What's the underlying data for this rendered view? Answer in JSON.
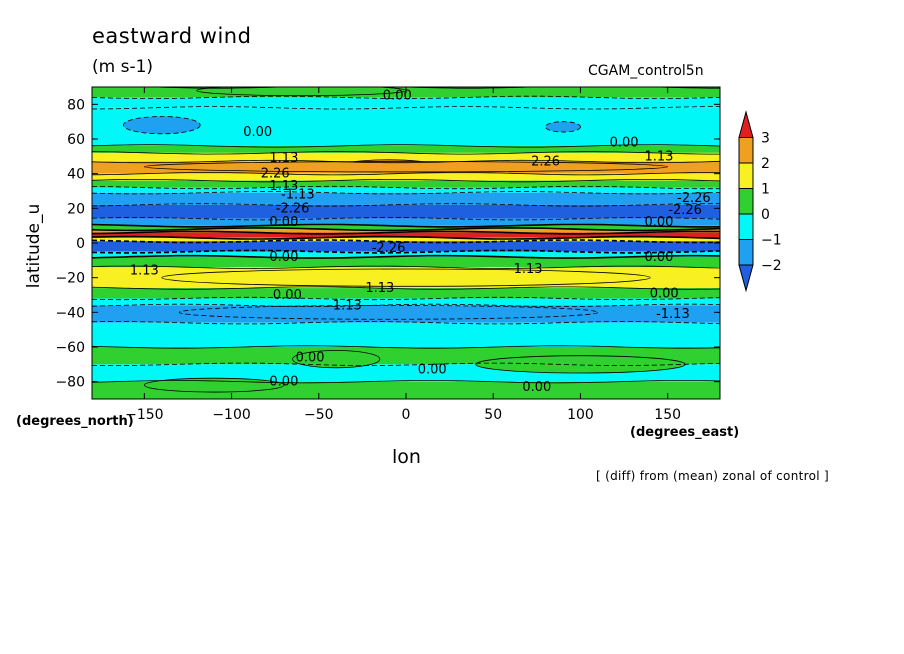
{
  "title": "eastward wind",
  "units": "(m s-1)",
  "run_label": "CGAM_control5n",
  "footnote": "[ (diff) from (mean) zonal of control ]",
  "chart_data": {
    "type": "heatmap",
    "title": "eastward wind",
    "xlabel": "lon",
    "ylabel": "latitude_u",
    "x_units": "(degrees_east)",
    "y_units": "(degrees_north)",
    "xlim": [
      -180,
      180
    ],
    "ylim": [
      -90,
      90
    ],
    "xticks": [
      -150,
      -100,
      -50,
      0,
      50,
      100,
      150
    ],
    "yticks": [
      80,
      60,
      40,
      20,
      0,
      -20,
      -40,
      -60,
      -80
    ],
    "colorbar": {
      "levels": [
        3,
        2,
        1,
        0,
        -1,
        -2
      ],
      "colors": [
        "#e02020",
        "#f0a020",
        "#f8f020",
        "#30d030",
        "#00f8f8",
        "#20a0f0",
        "#1e60e0"
      ]
    },
    "contour_labels": [
      "0.00",
      "1.13",
      "2.26",
      "-1.13",
      "-2.26"
    ],
    "bands": [
      {
        "lat_top": 90,
        "lat_bottom": 84,
        "value": 0.5
      },
      {
        "lat_top": 84,
        "lat_bottom": 78,
        "value": -0.3
      },
      {
        "lat_top": 78,
        "lat_bottom": 56,
        "value": -0.5
      },
      {
        "lat_top": 56,
        "lat_bottom": 52,
        "value": 0.4
      },
      {
        "lat_top": 52,
        "lat_bottom": 47,
        "value": 1.3
      },
      {
        "lat_top": 47,
        "lat_bottom": 40,
        "value": 2.2
      },
      {
        "lat_top": 40,
        "lat_bottom": 36,
        "value": 1.3
      },
      {
        "lat_top": 36,
        "lat_bottom": 32,
        "value": 0.3
      },
      {
        "lat_top": 32,
        "lat_bottom": 29,
        "value": -0.7
      },
      {
        "lat_top": 29,
        "lat_bottom": 22,
        "value": -1.6
      },
      {
        "lat_top": 22,
        "lat_bottom": 14,
        "value": -2.4
      },
      {
        "lat_top": 14,
        "lat_bottom": 10,
        "value": -1.2
      },
      {
        "lat_top": 10,
        "lat_bottom": 8,
        "value": 0.6
      },
      {
        "lat_top": 8,
        "lat_bottom": 6,
        "value": 2.5
      },
      {
        "lat_top": 6,
        "lat_bottom": 3,
        "value": 3.5
      },
      {
        "lat_top": 3,
        "lat_bottom": 1,
        "value": 1.5
      },
      {
        "lat_top": 1,
        "lat_bottom": -5,
        "value": -2.4
      },
      {
        "lat_top": -5,
        "lat_bottom": -8,
        "value": -0.6
      },
      {
        "lat_top": -8,
        "lat_bottom": -14,
        "value": 0.5
      },
      {
        "lat_top": -14,
        "lat_bottom": -26,
        "value": 1.4
      },
      {
        "lat_top": -26,
        "lat_bottom": -32,
        "value": 0.4
      },
      {
        "lat_top": -32,
        "lat_bottom": -36,
        "value": -0.4
      },
      {
        "lat_top": -36,
        "lat_bottom": -46,
        "value": -1.2
      },
      {
        "lat_top": -46,
        "lat_bottom": -60,
        "value": -0.5
      },
      {
        "lat_top": -60,
        "lat_bottom": -70,
        "value": 0.3
      },
      {
        "lat_top": -70,
        "lat_bottom": -80,
        "value": -0.2
      },
      {
        "lat_top": -80,
        "lat_bottom": -90,
        "value": 0.4
      }
    ],
    "blobs": [
      {
        "lon": -140,
        "lat": 68,
        "rx": 22,
        "ry": 5,
        "value": -1.3
      },
      {
        "lon": 90,
        "lat": 67,
        "rx": 10,
        "ry": 3,
        "value": -1.3
      },
      {
        "lon": -10,
        "lat": 45,
        "rx": 25,
        "ry": 3,
        "value": 2.4
      },
      {
        "lon": 0,
        "lat": 44,
        "rx": 150,
        "ry": 3,
        "value": 2.2
      },
      {
        "lon": -60,
        "lat": 88,
        "rx": 60,
        "ry": 3,
        "value": 0.5
      },
      {
        "lon": 0,
        "lat": -20,
        "rx": 140,
        "ry": 5,
        "value": 1.4
      },
      {
        "lon": -10,
        "lat": -40,
        "rx": 120,
        "ry": 4,
        "value": -1.3
      },
      {
        "lon": -40,
        "lat": -67,
        "rx": 25,
        "ry": 5,
        "value": 0.4
      },
      {
        "lon": 100,
        "lat": -70,
        "rx": 60,
        "ry": 5,
        "value": 0.4
      },
      {
        "lon": -110,
        "lat": -82,
        "rx": 40,
        "ry": 4,
        "value": 0.4
      }
    ],
    "labels": [
      {
        "text": "0.00",
        "lon": -5,
        "lat": 85
      },
      {
        "text": "0.00",
        "lon": -85,
        "lat": 64
      },
      {
        "text": "0.00",
        "lon": 125,
        "lat": 58
      },
      {
        "text": "1.13",
        "lon": -70,
        "lat": 49
      },
      {
        "text": "1.13",
        "lon": 145,
        "lat": 50
      },
      {
        "text": "2.26",
        "lon": 80,
        "lat": 47
      },
      {
        "text": "2.26",
        "lon": -75,
        "lat": 40
      },
      {
        "text": "1.13",
        "lon": -70,
        "lat": 33
      },
      {
        "text": "-1.13",
        "lon": -62,
        "lat": 28
      },
      {
        "text": "-2.26",
        "lon": 165,
        "lat": 26
      },
      {
        "text": "-2.26",
        "lon": -65,
        "lat": 20
      },
      {
        "text": "-2.26",
        "lon": 160,
        "lat": 19
      },
      {
        "text": "0.00",
        "lon": -70,
        "lat": 12
      },
      {
        "text": "0.00",
        "lon": 145,
        "lat": 12
      },
      {
        "text": "-2.26",
        "lon": -10,
        "lat": -3
      },
      {
        "text": "0.00",
        "lon": -70,
        "lat": -8
      },
      {
        "text": "0.00",
        "lon": 145,
        "lat": -8
      },
      {
        "text": "1.13",
        "lon": -150,
        "lat": -16
      },
      {
        "text": "1.13",
        "lon": 70,
        "lat": -15
      },
      {
        "text": "1.13",
        "lon": -15,
        "lat": -26
      },
      {
        "text": "0.00",
        "lon": -68,
        "lat": -30
      },
      {
        "text": "0.00",
        "lon": 148,
        "lat": -29
      },
      {
        "text": "-1.13",
        "lon": -35,
        "lat": -36
      },
      {
        "text": "-1.13",
        "lon": 153,
        "lat": -41
      },
      {
        "text": "0.00",
        "lon": -55,
        "lat": -66
      },
      {
        "text": "0.00",
        "lon": 15,
        "lat": -73
      },
      {
        "text": "0.00",
        "lon": -70,
        "lat": -80
      },
      {
        "text": "0.00",
        "lon": 75,
        "lat": -83
      }
    ]
  }
}
